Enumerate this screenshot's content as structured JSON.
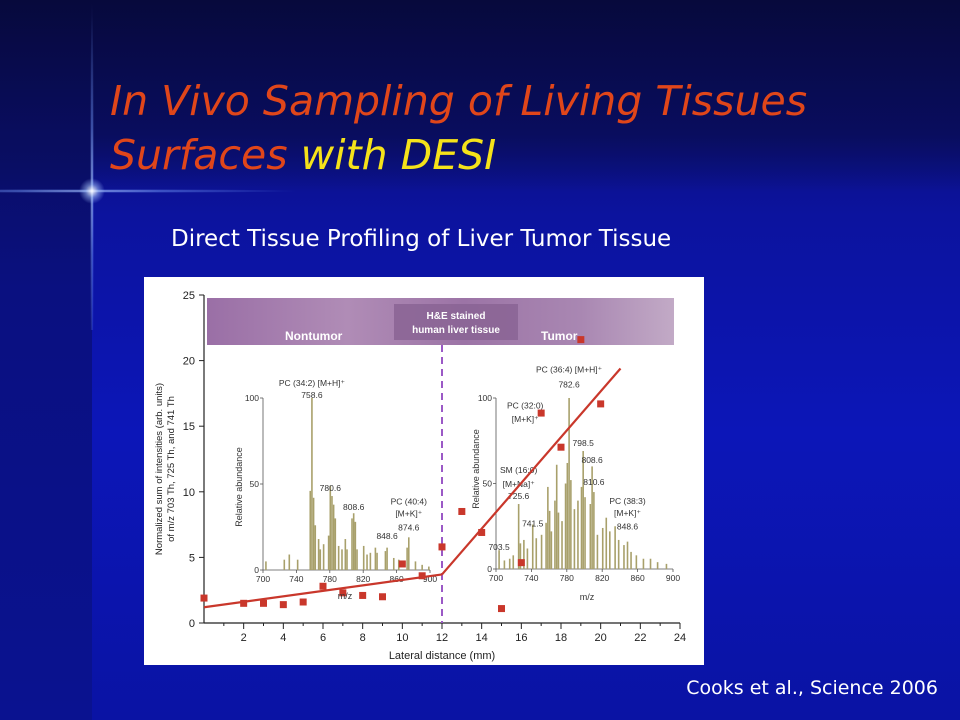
{
  "slide": {
    "title_part1": "In Vivo Sampling of Living Tissues Surfaces",
    "title_part2": "with DESI",
    "subtitle": "Direct Tissue Profiling of Liver Tumor Tissue",
    "citation": "Cooks et al., Science 2006",
    "colors": {
      "title": "#e0461a",
      "title_highlight": "#f5e21a",
      "background": "#0c16b8"
    }
  },
  "chart_data": [
    {
      "type": "scatter",
      "title": "",
      "xlabel": "Lateral distance (mm)",
      "ylabel": "Normalized sum of intensities (arb. units) of m/z 703 Th, 725 Th, and 741 Th",
      "ylabel_line1": "Normalized sum of intensities (arb. units)",
      "ylabel_line2": "of m/z 703 Th, 725 Th, and 741 Th",
      "xlim": [
        0,
        24
      ],
      "ylim": [
        0,
        25
      ],
      "x_ticks": [
        "2",
        "4",
        "6",
        "8",
        "10",
        "12",
        "14",
        "16",
        "18",
        "20",
        "22",
        "24"
      ],
      "y_ticks": [
        "0",
        "5",
        "10",
        "15",
        "20",
        "25"
      ],
      "points": [
        {
          "x": 0,
          "y": 1.9
        },
        {
          "x": 2,
          "y": 1.5
        },
        {
          "x": 3,
          "y": 1.5
        },
        {
          "x": 4,
          "y": 1.4
        },
        {
          "x": 5,
          "y": 1.6
        },
        {
          "x": 6,
          "y": 2.8
        },
        {
          "x": 7,
          "y": 2.3
        },
        {
          "x": 8,
          "y": 2.1
        },
        {
          "x": 9,
          "y": 2.0
        },
        {
          "x": 10,
          "y": 4.5
        },
        {
          "x": 11,
          "y": 3.6
        },
        {
          "x": 12,
          "y": 5.8
        },
        {
          "x": 13,
          "y": 8.5
        },
        {
          "x": 14,
          "y": 6.9
        },
        {
          "x": 15,
          "y": 1.1
        },
        {
          "x": 16,
          "y": 4.6
        },
        {
          "x": 17,
          "y": 16.0
        },
        {
          "x": 18,
          "y": 13.4
        },
        {
          "x": 19,
          "y": 21.6
        },
        {
          "x": 20,
          "y": 16.7
        }
      ],
      "fit_lines": [
        {
          "x": [
            0,
            12
          ],
          "y": [
            1.2,
            3.7
          ]
        },
        {
          "x": [
            12,
            21
          ],
          "y": [
            3.7,
            19.4
          ]
        }
      ],
      "boundary_x": 12,
      "colors": {
        "points": "#c9372b",
        "fit": "#c9372b",
        "boundary": "#9b59c6",
        "axes": "#222222"
      }
    },
    {
      "type": "bar",
      "region_label": "Nontumor",
      "xlabel": "m/z",
      "ylabel": "Relative abundance",
      "x_ticks": [
        "700",
        "740",
        "780",
        "820",
        "860",
        "900"
      ],
      "y_ticks": [
        "0",
        "50",
        "100"
      ],
      "xlim": [
        700,
        900
      ],
      "ylim": [
        0,
        100
      ],
      "annotations": [
        {
          "text": "PC (34:2) [M+H]⁺",
          "x": 758.6,
          "y": 107
        },
        {
          "text": "758.6",
          "x": 758.6,
          "y": 100
        },
        {
          "text": "780.6",
          "x": 780.6,
          "y": 46
        },
        {
          "text": "808.6",
          "x": 808.6,
          "y": 35
        },
        {
          "text": "PC (40:4)",
          "x": 874.6,
          "y": 38
        },
        {
          "text": "[M+K]⁺",
          "x": 874.6,
          "y": 31
        },
        {
          "text": "874.6",
          "x": 874.6,
          "y": 23
        },
        {
          "text": "848.6",
          "x": 848.6,
          "y": 18
        }
      ],
      "peaks": [
        {
          "mz": 703.5,
          "v": 5
        },
        {
          "mz": 725.5,
          "v": 6
        },
        {
          "mz": 731.5,
          "v": 9
        },
        {
          "mz": 741.5,
          "v": 6
        },
        {
          "mz": 756.6,
          "v": 46
        },
        {
          "mz": 758.6,
          "v": 100
        },
        {
          "mz": 760.6,
          "v": 42
        },
        {
          "mz": 762.6,
          "v": 26
        },
        {
          "mz": 766.6,
          "v": 18
        },
        {
          "mz": 768.6,
          "v": 12
        },
        {
          "mz": 772.6,
          "v": 15
        },
        {
          "mz": 778.6,
          "v": 20
        },
        {
          "mz": 780.6,
          "v": 49
        },
        {
          "mz": 782.6,
          "v": 43
        },
        {
          "mz": 784.6,
          "v": 38
        },
        {
          "mz": 786.6,
          "v": 30
        },
        {
          "mz": 790.6,
          "v": 14
        },
        {
          "mz": 794.6,
          "v": 12
        },
        {
          "mz": 798.6,
          "v": 18
        },
        {
          "mz": 800.6,
          "v": 12
        },
        {
          "mz": 806.6,
          "v": 30
        },
        {
          "mz": 808.6,
          "v": 33
        },
        {
          "mz": 810.6,
          "v": 28
        },
        {
          "mz": 812.6,
          "v": 12
        },
        {
          "mz": 820.6,
          "v": 14
        },
        {
          "mz": 824.6,
          "v": 9
        },
        {
          "mz": 828.6,
          "v": 10
        },
        {
          "mz": 834.6,
          "v": 13
        },
        {
          "mz": 836.6,
          "v": 10
        },
        {
          "mz": 846.6,
          "v": 11
        },
        {
          "mz": 848.6,
          "v": 13
        },
        {
          "mz": 856.6,
          "v": 7
        },
        {
          "mz": 862.6,
          "v": 6
        },
        {
          "mz": 872.6,
          "v": 13
        },
        {
          "mz": 874.6,
          "v": 19
        },
        {
          "mz": 882.6,
          "v": 5
        },
        {
          "mz": 890.6,
          "v": 3
        },
        {
          "mz": 898.6,
          "v": 2
        }
      ],
      "color": "#a8a06b"
    },
    {
      "type": "bar",
      "region_label": "Tumor",
      "xlabel": "m/z",
      "ylabel": "Relative abundance",
      "x_ticks": [
        "700",
        "740",
        "780",
        "820",
        "860",
        "900"
      ],
      "y_ticks": [
        "0",
        "50",
        "100"
      ],
      "xlim": [
        700,
        900
      ],
      "ylim": [
        0,
        100
      ],
      "annotations": [
        {
          "text": "PC (36:4) [M+H]⁺",
          "x": 782.6,
          "y": 115
        },
        {
          "text": "782.6",
          "x": 782.6,
          "y": 106
        },
        {
          "text": "PC (32:0)",
          "x": 733,
          "y": 94
        },
        {
          "text": "[M+K]⁺",
          "x": 733,
          "y": 86
        },
        {
          "text": "798.5",
          "x": 798.5,
          "y": 72
        },
        {
          "text": "808.6",
          "x": 808.6,
          "y": 62
        },
        {
          "text": "SM (16:0)",
          "x": 725.6,
          "y": 56
        },
        {
          "text": "[M+Na]⁺",
          "x": 725.6,
          "y": 48
        },
        {
          "text": "810.6",
          "x": 810.6,
          "y": 49
        },
        {
          "text": "725.6",
          "x": 725.6,
          "y": 41
        },
        {
          "text": "PC (38:3)",
          "x": 848.6,
          "y": 38
        },
        {
          "text": "[M+K]⁺",
          "x": 848.6,
          "y": 31
        },
        {
          "text": "848.6",
          "x": 848.6,
          "y": 23
        },
        {
          "text": "741.5",
          "x": 741.5,
          "y": 25
        },
        {
          "text": "703.5",
          "x": 703.5,
          "y": 11
        }
      ],
      "peaks": [
        {
          "mz": 703.5,
          "v": 11
        },
        {
          "mz": 709.5,
          "v": 5
        },
        {
          "mz": 715.5,
          "v": 6
        },
        {
          "mz": 719.5,
          "v": 8
        },
        {
          "mz": 725.6,
          "v": 38
        },
        {
          "mz": 727.6,
          "v": 15
        },
        {
          "mz": 731.5,
          "v": 17
        },
        {
          "mz": 735.5,
          "v": 12
        },
        {
          "mz": 741.5,
          "v": 26
        },
        {
          "mz": 745.5,
          "v": 18
        },
        {
          "mz": 751.5,
          "v": 20
        },
        {
          "mz": 756.6,
          "v": 27
        },
        {
          "mz": 758.6,
          "v": 48
        },
        {
          "mz": 760.6,
          "v": 34
        },
        {
          "mz": 762.6,
          "v": 22
        },
        {
          "mz": 766.6,
          "v": 40
        },
        {
          "mz": 768.6,
          "v": 61
        },
        {
          "mz": 770.6,
          "v": 33
        },
        {
          "mz": 774.6,
          "v": 28
        },
        {
          "mz": 778.6,
          "v": 50
        },
        {
          "mz": 780.6,
          "v": 62
        },
        {
          "mz": 782.6,
          "v": 100
        },
        {
          "mz": 784.6,
          "v": 52
        },
        {
          "mz": 788.6,
          "v": 35
        },
        {
          "mz": 792.6,
          "v": 40
        },
        {
          "mz": 796.6,
          "v": 48
        },
        {
          "mz": 798.5,
          "v": 69
        },
        {
          "mz": 800.6,
          "v": 42
        },
        {
          "mz": 806.6,
          "v": 38
        },
        {
          "mz": 808.6,
          "v": 60
        },
        {
          "mz": 810.6,
          "v": 45
        },
        {
          "mz": 814.6,
          "v": 20
        },
        {
          "mz": 820.6,
          "v": 24
        },
        {
          "mz": 824.6,
          "v": 30
        },
        {
          "mz": 828.6,
          "v": 22
        },
        {
          "mz": 834.6,
          "v": 25
        },
        {
          "mz": 838.6,
          "v": 17
        },
        {
          "mz": 844.6,
          "v": 14
        },
        {
          "mz": 848.6,
          "v": 16
        },
        {
          "mz": 852.6,
          "v": 10
        },
        {
          "mz": 858.6,
          "v": 8
        },
        {
          "mz": 866.6,
          "v": 6
        },
        {
          "mz": 874.6,
          "v": 6
        },
        {
          "mz": 882.6,
          "v": 4
        },
        {
          "mz": 892.6,
          "v": 3
        }
      ],
      "color": "#a8a06b"
    }
  ],
  "tissue_strip": {
    "label_line1": "H&E stained",
    "label_line2": "human liver tissue",
    "left_label": "Nontumor",
    "right_label": "Tumor",
    "color": "#a07aa8"
  }
}
